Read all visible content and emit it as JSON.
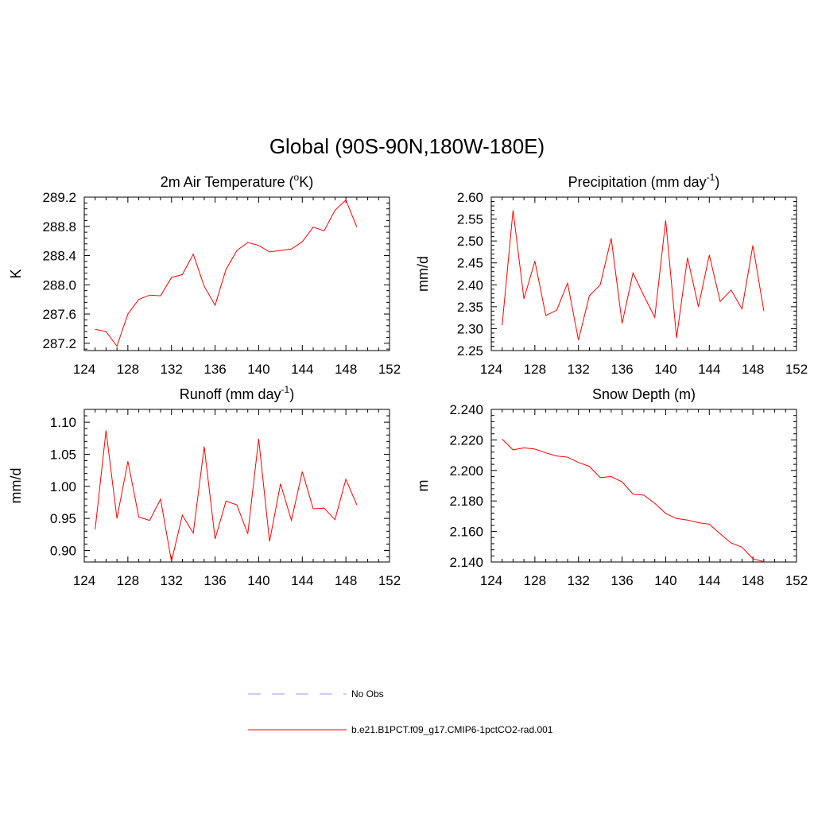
{
  "figure": {
    "title": "Global (90S-90N,180W-180E)"
  },
  "legend": [
    {
      "label": "No Obs",
      "color": "#9999ff",
      "dash": true
    },
    {
      "label": "b.e21.B1PCT.f09_g17.CMIP6-1pctCO2-rad.001",
      "color": "#ff0000",
      "dash": false
    }
  ],
  "chart_data": [
    {
      "type": "line",
      "title": "2m Air Temperature (",
      "title_sup": "o",
      "title_after": "K)",
      "xlabel": "",
      "ylabel": "K",
      "xlim": [
        124,
        152
      ],
      "ylim": [
        287.1,
        289.2
      ],
      "xticks": [
        124,
        128,
        132,
        136,
        140,
        144,
        148,
        152
      ],
      "yticks": [
        "287.2",
        "287.6",
        "288.0",
        "288.4",
        "288.8",
        "289.2"
      ],
      "x": [
        125,
        126,
        127,
        128,
        129,
        130,
        131,
        132,
        133,
        134,
        135,
        136,
        137,
        138,
        139,
        140,
        141,
        142,
        143,
        144,
        145,
        146,
        147,
        148,
        149
      ],
      "series": [
        {
          "color": "#ff0000",
          "values": [
            287.39,
            287.36,
            287.16,
            287.6,
            287.8,
            287.86,
            287.85,
            288.1,
            288.14,
            288.42,
            287.98,
            287.72,
            288.21,
            288.47,
            288.58,
            288.54,
            288.45,
            288.47,
            288.49,
            288.59,
            288.79,
            288.74,
            289.02,
            289.16,
            288.79
          ]
        }
      ]
    },
    {
      "type": "line",
      "title": "Precipitation (mm day",
      "title_sup": "-1",
      "title_after": ")",
      "xlabel": "",
      "ylabel": "mm/d",
      "xlim": [
        124,
        152
      ],
      "ylim": [
        2.25,
        2.6
      ],
      "xticks": [
        124,
        128,
        132,
        136,
        140,
        144,
        148,
        152
      ],
      "yticks": [
        "2.25",
        "2.30",
        "2.35",
        "2.40",
        "2.45",
        "2.50",
        "2.55",
        "2.60"
      ],
      "x": [
        125,
        126,
        127,
        128,
        129,
        130,
        131,
        132,
        133,
        134,
        135,
        136,
        137,
        138,
        139,
        140,
        141,
        142,
        143,
        144,
        145,
        146,
        147,
        148,
        149
      ],
      "series": [
        {
          "color": "#ff0000",
          "values": [
            2.308,
            2.57,
            2.368,
            2.454,
            2.33,
            2.342,
            2.404,
            2.274,
            2.375,
            2.4,
            2.506,
            2.312,
            2.427,
            2.375,
            2.326,
            2.547,
            2.279,
            2.462,
            2.35,
            2.468,
            2.362,
            2.388,
            2.345,
            2.49,
            2.34
          ]
        }
      ]
    },
    {
      "type": "line",
      "title": "Runoff (mm day",
      "title_sup": "-1",
      "title_after": ")",
      "xlabel": "",
      "ylabel": "mm/d",
      "xlim": [
        124,
        152
      ],
      "ylim": [
        0.882,
        1.12
      ],
      "xticks": [
        124,
        128,
        132,
        136,
        140,
        144,
        148,
        152
      ],
      "yticks": [
        "0.90",
        "0.95",
        "1.00",
        "1.05",
        "1.10"
      ],
      "x": [
        125,
        126,
        127,
        128,
        129,
        130,
        131,
        132,
        133,
        134,
        135,
        136,
        137,
        138,
        139,
        140,
        141,
        142,
        143,
        144,
        145,
        146,
        147,
        148,
        149
      ],
      "series": [
        {
          "color": "#ff0000",
          "values": [
            0.933,
            1.087,
            0.95,
            1.039,
            0.952,
            0.947,
            0.98,
            0.883,
            0.955,
            0.927,
            1.062,
            0.918,
            0.977,
            0.971,
            0.926,
            1.074,
            0.914,
            1.004,
            0.947,
            1.023,
            0.965,
            0.966,
            0.948,
            1.011,
            0.971
          ]
        }
      ]
    },
    {
      "type": "line",
      "title": "Snow Depth (m)",
      "title_sup": "",
      "title_after": "",
      "xlabel": "",
      "ylabel": "m",
      "xlim": [
        124,
        152
      ],
      "ylim": [
        2.14,
        2.24
      ],
      "xticks": [
        124,
        128,
        132,
        136,
        140,
        144,
        148,
        152
      ],
      "yticks": [
        "2.140",
        "2.160",
        "2.180",
        "2.200",
        "2.220",
        "2.240"
      ],
      "x": [
        125,
        126,
        127,
        128,
        129,
        130,
        131,
        132,
        133,
        134,
        135,
        136,
        137,
        138,
        139,
        140,
        141,
        142,
        143,
        144,
        145,
        146,
        147,
        148,
        149
      ],
      "series": [
        {
          "color": "#ff0000",
          "values": [
            2.2205,
            2.2135,
            2.2148,
            2.214,
            2.2115,
            2.2095,
            2.2087,
            2.2052,
            2.2027,
            2.1953,
            2.196,
            2.1925,
            2.1845,
            2.1838,
            2.1785,
            2.1718,
            2.1685,
            2.1675,
            2.1658,
            2.1648,
            2.1585,
            2.1525,
            2.1497,
            2.1422,
            2.1402
          ]
        }
      ]
    }
  ]
}
